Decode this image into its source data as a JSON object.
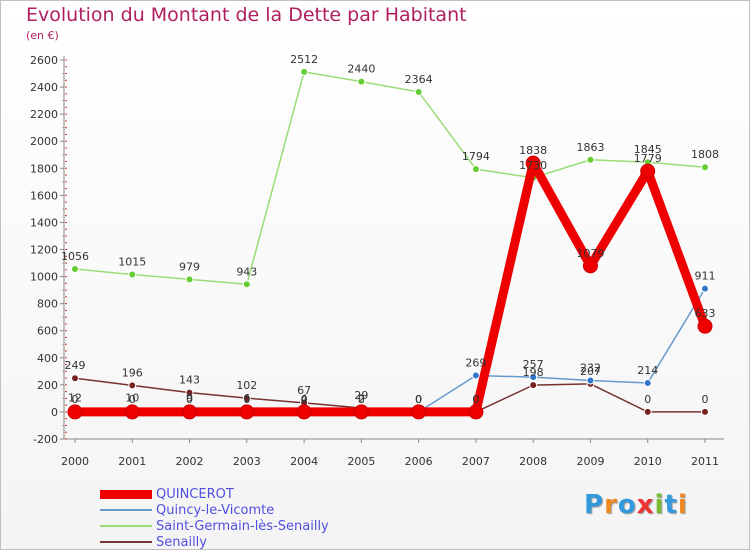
{
  "title": "Evolution du Montant de la Dette par Habitant",
  "subtitle": "(en €)",
  "logo": "Proxiti",
  "chart_data": {
    "type": "line",
    "title": "Evolution du Montant de la Dette par Habitant",
    "ylabel": "(en €)",
    "xlabel": "",
    "categories": [
      "2000",
      "2001",
      "2002",
      "2003",
      "2004",
      "2005",
      "2006",
      "2007",
      "2008",
      "2009",
      "2010",
      "2011"
    ],
    "ylim": [
      -200,
      2600
    ],
    "yticks": [
      -200,
      0,
      200,
      400,
      600,
      800,
      1000,
      1200,
      1400,
      1600,
      1800,
      2000,
      2200,
      2400,
      2600
    ],
    "grid": false,
    "legend": "bottom-left",
    "series": [
      {
        "name": "QUINCEROT",
        "color": "#ee0000",
        "marker": "#ee0000",
        "values": [
          0,
          0,
          0,
          0,
          0,
          0,
          0,
          0,
          1838,
          1079,
          1779,
          633
        ],
        "labels": [
          "0",
          "0",
          "0",
          "0",
          "0",
          "0",
          "0",
          "0",
          "1838",
          "1079",
          "1779",
          "633"
        ]
      },
      {
        "name": "Quincy-le-Vicomte",
        "color": "#6699cc",
        "marker": "#3377cc",
        "values": [
          12,
          10,
          9,
          6,
          4,
          2,
          0,
          269,
          257,
          232,
          214,
          911
        ],
        "labels": [
          "12",
          "10",
          "9",
          "6",
          "4",
          "2",
          "0",
          "269",
          "257",
          "232",
          "214",
          "911"
        ]
      },
      {
        "name": "Saint-Germain-lès-Senailly",
        "color": "#99dd77",
        "marker": "#66cc33",
        "values": [
          1056,
          1015,
          979,
          943,
          2512,
          2440,
          2364,
          1794,
          1730,
          1863,
          1845,
          1808
        ],
        "labels": [
          "1056",
          "1015",
          "979",
          "943",
          "2512",
          "2440",
          "2364",
          "1794",
          "1730",
          "1863",
          "1845",
          "1808"
        ]
      },
      {
        "name": "Senailly",
        "color": "#773333",
        "marker": "#772222",
        "values": [
          249,
          196,
          143,
          102,
          67,
          29,
          0,
          0,
          198,
          207,
          0,
          0
        ],
        "labels": [
          "249",
          "196",
          "143",
          "102",
          "67",
          "29",
          "0",
          "0",
          "198",
          "207",
          "0",
          "0"
        ]
      }
    ]
  }
}
